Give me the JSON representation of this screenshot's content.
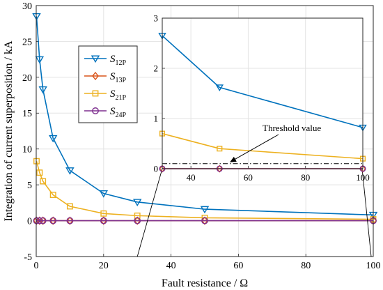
{
  "chart_data": [
    {
      "id": "main",
      "type": "line",
      "xlabel": "Fault resistance / Ω",
      "ylabel": "Integration of current superposition / kA",
      "xlim": [
        0,
        100
      ],
      "ylim": [
        -5,
        30
      ],
      "xticks": [
        0,
        20,
        40,
        60,
        80,
        100
      ],
      "yticks": [
        -5,
        0,
        5,
        10,
        15,
        20,
        25,
        30
      ],
      "grid": true,
      "legend_position": "left, upper-middle",
      "series": [
        {
          "name": "S",
          "sub": "12P",
          "color": "#0072bd",
          "marker": "triangle-down",
          "x": [
            0.1,
            1,
            2,
            5,
            10,
            20,
            30,
            50,
            100
          ],
          "y": [
            28.5,
            22.5,
            18.3,
            11.5,
            7.0,
            3.8,
            2.6,
            1.6,
            0.8
          ]
        },
        {
          "name": "S",
          "sub": "13P",
          "color": "#d95319",
          "marker": "diamond",
          "x": [
            0.1,
            1,
            2,
            5,
            10,
            20,
            30,
            50,
            100
          ],
          "y": [
            0,
            0,
            0,
            0,
            0,
            0,
            0,
            0,
            0
          ]
        },
        {
          "name": "S",
          "sub": "21P",
          "color": "#edb120",
          "marker": "square",
          "x": [
            0.1,
            1,
            2,
            5,
            10,
            20,
            30,
            50,
            100
          ],
          "y": [
            8.3,
            6.7,
            5.5,
            3.6,
            2.0,
            1.0,
            0.7,
            0.4,
            0.2
          ]
        },
        {
          "name": "S",
          "sub": "24P",
          "color": "#7e2f8e",
          "marker": "circle",
          "x": [
            0.1,
            1,
            2,
            5,
            10,
            20,
            30,
            50,
            100
          ],
          "y": [
            0,
            0,
            0,
            0,
            0,
            0,
            0,
            0,
            0
          ]
        }
      ]
    },
    {
      "id": "inset",
      "type": "line",
      "xlim": [
        30,
        100
      ],
      "ylim": [
        0,
        3
      ],
      "xticks": [
        40,
        60,
        80,
        100
      ],
      "yticks": [
        0,
        1,
        2,
        3
      ],
      "grid": true,
      "threshold": {
        "value": 0.1,
        "label": "Threshold value",
        "style": "dash-dot"
      },
      "series": [
        {
          "sub": "12P",
          "color": "#0072bd",
          "marker": "triangle-down",
          "x": [
            30,
            50,
            100
          ],
          "y": [
            2.65,
            1.62,
            0.82
          ]
        },
        {
          "sub": "13P",
          "color": "#d95319",
          "marker": "diamond",
          "x": [
            30,
            50,
            100
          ],
          "y": [
            0,
            0,
            0
          ]
        },
        {
          "sub": "21P",
          "color": "#edb120",
          "marker": "square",
          "x": [
            30,
            50,
            100
          ],
          "y": [
            0.7,
            0.4,
            0.2
          ]
        },
        {
          "sub": "24P",
          "color": "#7e2f8e",
          "marker": "circle",
          "x": [
            30,
            50,
            100
          ],
          "y": [
            0,
            0,
            0
          ]
        }
      ]
    }
  ]
}
